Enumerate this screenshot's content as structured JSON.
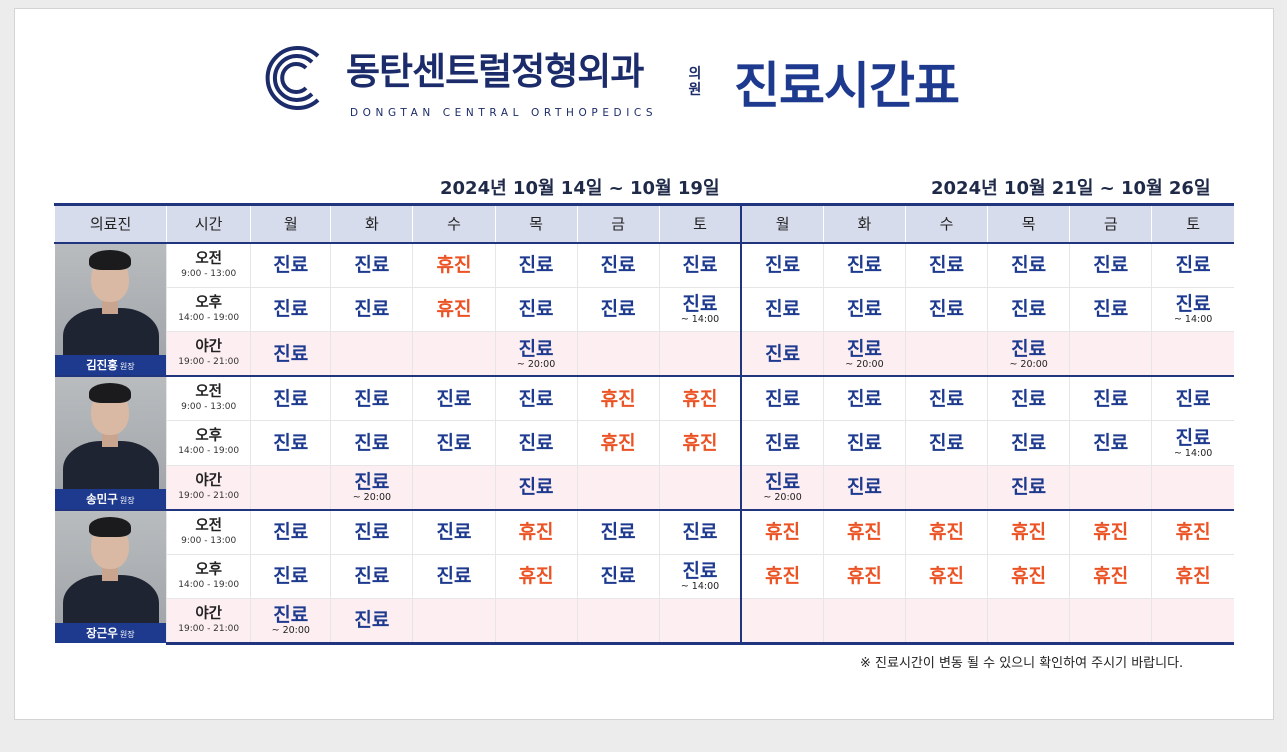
{
  "header": {
    "clinic_name_ko": "동탄센트럴정형외과",
    "clinic_suffix": "의원",
    "clinic_name_en": "DONGTAN CENTRAL ORTHOPEDICS",
    "title": "진료시간표",
    "colors": {
      "navy": "#1d3a8f",
      "open": "#1d3a8f",
      "closed": "#ec5324",
      "night_bg": "#fdeef1",
      "header_bg": "#d7dcec"
    }
  },
  "weeks": [
    "2024년 10월 14일 ~ 10월 19일",
    "2024년 10월 21일 ~ 10월 26일"
  ],
  "columns": {
    "doctor": "의료진",
    "time": "시간",
    "days": [
      "월",
      "화",
      "수",
      "목",
      "금",
      "토",
      "월",
      "화",
      "수",
      "목",
      "금",
      "토"
    ]
  },
  "slots": [
    {
      "label": "오전",
      "time": "9:00 - 13:00"
    },
    {
      "label": "오후",
      "time": "14:00 - 19:00"
    },
    {
      "label": "야간",
      "time": "19:00 - 21:00"
    }
  ],
  "doctors": [
    {
      "name": "김진홍",
      "title": "원장",
      "photo_icon": "doctor-portrait",
      "rows": [
        [
          {
            "s": "진료"
          },
          {
            "s": "진료"
          },
          {
            "s": "휴진"
          },
          {
            "s": "진료"
          },
          {
            "s": "진료"
          },
          {
            "s": "진료"
          },
          {
            "s": "진료"
          },
          {
            "s": "진료"
          },
          {
            "s": "진료"
          },
          {
            "s": "진료"
          },
          {
            "s": "진료"
          },
          {
            "s": "진료"
          }
        ],
        [
          {
            "s": "진료"
          },
          {
            "s": "진료"
          },
          {
            "s": "휴진"
          },
          {
            "s": "진료"
          },
          {
            "s": "진료"
          },
          {
            "s": "진료",
            "n": "~ 14:00"
          },
          {
            "s": "진료"
          },
          {
            "s": "진료"
          },
          {
            "s": "진료"
          },
          {
            "s": "진료"
          },
          {
            "s": "진료"
          },
          {
            "s": "진료",
            "n": "~ 14:00"
          }
        ],
        [
          {
            "s": "진료"
          },
          {},
          {},
          {
            "s": "진료",
            "n": "~ 20:00"
          },
          {},
          {},
          {
            "s": "진료"
          },
          {
            "s": "진료",
            "n": "~ 20:00"
          },
          {},
          {
            "s": "진료",
            "n": "~ 20:00"
          },
          {},
          {}
        ]
      ]
    },
    {
      "name": "송민구",
      "title": "원장",
      "photo_icon": "doctor-portrait",
      "rows": [
        [
          {
            "s": "진료"
          },
          {
            "s": "진료"
          },
          {
            "s": "진료"
          },
          {
            "s": "진료"
          },
          {
            "s": "휴진"
          },
          {
            "s": "휴진"
          },
          {
            "s": "진료"
          },
          {
            "s": "진료"
          },
          {
            "s": "진료"
          },
          {
            "s": "진료"
          },
          {
            "s": "진료"
          },
          {
            "s": "진료"
          }
        ],
        [
          {
            "s": "진료"
          },
          {
            "s": "진료"
          },
          {
            "s": "진료"
          },
          {
            "s": "진료"
          },
          {
            "s": "휴진"
          },
          {
            "s": "휴진"
          },
          {
            "s": "진료"
          },
          {
            "s": "진료"
          },
          {
            "s": "진료"
          },
          {
            "s": "진료"
          },
          {
            "s": "진료"
          },
          {
            "s": "진료",
            "n": "~ 14:00"
          }
        ],
        [
          {},
          {
            "s": "진료",
            "n": "~ 20:00"
          },
          {},
          {
            "s": "진료"
          },
          {},
          {},
          {
            "s": "진료",
            "n": "~ 20:00"
          },
          {
            "s": "진료"
          },
          {},
          {
            "s": "진료"
          },
          {},
          {}
        ]
      ]
    },
    {
      "name": "장근우",
      "title": "원장",
      "photo_icon": "doctor-portrait",
      "rows": [
        [
          {
            "s": "진료"
          },
          {
            "s": "진료"
          },
          {
            "s": "진료"
          },
          {
            "s": "휴진"
          },
          {
            "s": "진료"
          },
          {
            "s": "진료"
          },
          {
            "s": "휴진"
          },
          {
            "s": "휴진"
          },
          {
            "s": "휴진"
          },
          {
            "s": "휴진"
          },
          {
            "s": "휴진"
          },
          {
            "s": "휴진"
          }
        ],
        [
          {
            "s": "진료"
          },
          {
            "s": "진료"
          },
          {
            "s": "진료"
          },
          {
            "s": "휴진"
          },
          {
            "s": "진료"
          },
          {
            "s": "진료",
            "n": "~ 14:00"
          },
          {
            "s": "휴진"
          },
          {
            "s": "휴진"
          },
          {
            "s": "휴진"
          },
          {
            "s": "휴진"
          },
          {
            "s": "휴진"
          },
          {
            "s": "휴진"
          }
        ],
        [
          {
            "s": "진료",
            "n": "~ 20:00"
          },
          {
            "s": "진료"
          },
          {},
          {},
          {},
          {},
          {},
          {},
          {},
          {},
          {},
          {}
        ]
      ]
    }
  ],
  "footer": {
    "notice": "※ 진료시간이 변동 될 수 있으니 확인하여 주시기 바랍니다."
  }
}
